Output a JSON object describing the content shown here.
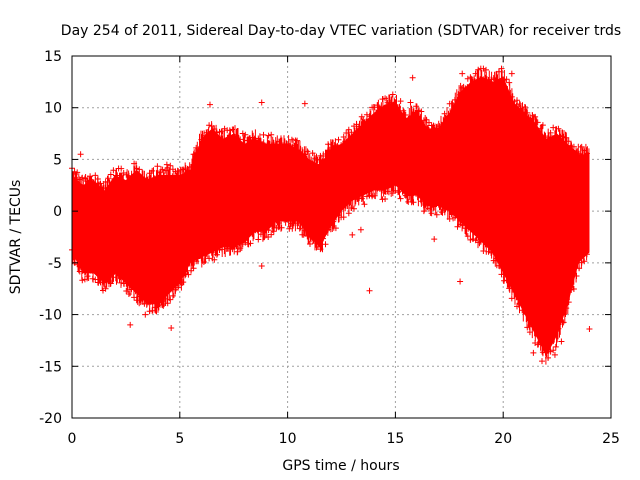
{
  "chart_data": {
    "type": "scatter",
    "title": "Day 254 of 2011, Sidereal Day-to-day VTEC variation (SDTVAR) for receiver trds",
    "xlabel": "GPS time / hours",
    "ylabel": "SDTVAR / TECUs",
    "xlim": [
      0,
      25
    ],
    "ylim": [
      -20,
      15
    ],
    "xticks": [
      0,
      5,
      10,
      15,
      20,
      25
    ],
    "yticks": [
      -20,
      -15,
      -10,
      -5,
      0,
      5,
      10,
      15
    ],
    "xtick_labels": [
      "0",
      "5",
      "10",
      "15",
      "20",
      "25"
    ],
    "ytick_labels": [
      "-20",
      "-15",
      "-10",
      "-5",
      "0",
      "5",
      "10",
      "15"
    ],
    "grid": true,
    "marker": "+",
    "color": "#ff0000",
    "series": [
      {
        "name": "SDTVAR",
        "envelope": {
          "x": [
            0,
            0.5,
            1,
            1.5,
            2,
            2.5,
            3,
            3.5,
            4,
            4.5,
            5,
            5.5,
            6,
            6.5,
            7,
            7.5,
            8,
            8.5,
            9,
            9.5,
            10,
            10.5,
            11,
            11.5,
            12,
            12.5,
            13,
            13.5,
            14,
            14.5,
            15,
            15.5,
            16,
            16.5,
            17,
            17.5,
            18,
            18.5,
            19,
            19.5,
            20,
            20.5,
            21,
            21.5,
            22,
            22.5,
            23,
            23.5,
            24
          ],
          "upper": [
            3.5,
            2.5,
            3,
            2,
            3.5,
            3,
            4,
            3,
            3.5,
            3.5,
            3.5,
            4,
            7,
            8,
            7,
            7.5,
            6.5,
            7,
            6.5,
            6.5,
            6.5,
            6,
            5,
            4.5,
            6,
            6.5,
            7.5,
            8.5,
            9.5,
            10.3,
            10.5,
            9,
            9.5,
            8,
            8,
            9.5,
            11.5,
            12.5,
            13,
            12.5,
            13,
            10.5,
            9.5,
            8.5,
            7,
            7.5,
            6.5,
            5.5,
            5.5
          ],
          "lower": [
            -4,
            -6,
            -6,
            -7,
            -6,
            -7,
            -8,
            -9,
            -9,
            -8,
            -7,
            -5,
            -4.5,
            -4,
            -3.5,
            -3.5,
            -3,
            -2,
            -2,
            -1,
            -1,
            -1,
            -2.5,
            -3.5,
            -1.5,
            0,
            1,
            1.5,
            2,
            2,
            2.5,
            1.5,
            1.5,
            0.5,
            0.5,
            0,
            -1,
            -2,
            -3,
            -4,
            -6,
            -8,
            -10,
            -12,
            -14,
            -12,
            -9,
            -5,
            -4
          ]
        },
        "outliers": [
          {
            "x": 0.4,
            "y": 5.5
          },
          {
            "x": 2.4,
            "y": -7
          },
          {
            "x": 2.7,
            "y": -11
          },
          {
            "x": 3.4,
            "y": -10
          },
          {
            "x": 4.6,
            "y": -11.3
          },
          {
            "x": 4.4,
            "y": 4.5
          },
          {
            "x": 6.4,
            "y": 10.3
          },
          {
            "x": 8.8,
            "y": 10.5
          },
          {
            "x": 8.8,
            "y": -5.3
          },
          {
            "x": 9.1,
            "y": -2.5
          },
          {
            "x": 13.0,
            "y": -2.3
          },
          {
            "x": 13.4,
            "y": -1.8
          },
          {
            "x": 13.8,
            "y": -7.7
          },
          {
            "x": 15.7,
            "y": 10.5
          },
          {
            "x": 15.8,
            "y": 12.9
          },
          {
            "x": 18.1,
            "y": 13.3
          },
          {
            "x": 18.0,
            "y": -6.8
          },
          {
            "x": 20.4,
            "y": 13.3
          },
          {
            "x": 21.4,
            "y": -13.7
          },
          {
            "x": 21.8,
            "y": -14.5
          },
          {
            "x": 22.4,
            "y": -13.9
          },
          {
            "x": 22.7,
            "y": -12.6
          },
          {
            "x": 23.2,
            "y": 5.8
          },
          {
            "x": 24.0,
            "y": -11.4
          },
          {
            "x": 16.8,
            "y": -2.7
          },
          {
            "x": 10.8,
            "y": 10.4
          }
        ]
      }
    ]
  }
}
